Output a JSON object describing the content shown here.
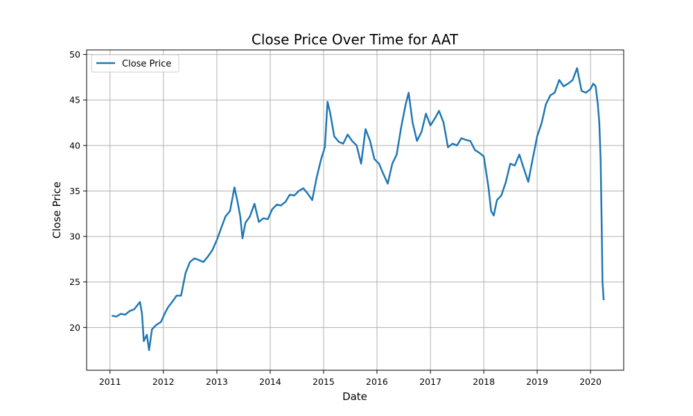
{
  "chart_data": {
    "type": "line",
    "title": "Close Price Over Time for AAT",
    "xlabel": "Date",
    "ylabel": "Close Price",
    "xlim": [
      "2010-07-25",
      "2020-08-15"
    ],
    "ylim": [
      15.3,
      50.5
    ],
    "xticks": [
      "2011",
      "2012",
      "2013",
      "2014",
      "2015",
      "2016",
      "2017",
      "2018",
      "2019",
      "2020"
    ],
    "yticks": [
      20,
      25,
      30,
      35,
      40,
      45,
      50
    ],
    "grid": true,
    "legend_position": "upper-left",
    "series": [
      {
        "name": "Close Price",
        "color": "#1f77b4",
        "x": [
          "2011-01-13",
          "2011-02-15",
          "2011-03-15",
          "2011-04-15",
          "2011-05-15",
          "2011-06-15",
          "2011-07-10",
          "2011-07-25",
          "2011-08-08",
          "2011-08-20",
          "2011-09-10",
          "2011-09-25",
          "2011-10-15",
          "2011-11-15",
          "2011-12-15",
          "2012-01-10",
          "2012-02-01",
          "2012-03-01",
          "2012-04-01",
          "2012-05-01",
          "2012-06-01",
          "2012-07-01",
          "2012-08-01",
          "2012-09-01",
          "2012-10-01",
          "2012-11-01",
          "2012-12-01",
          "2013-01-01",
          "2013-02-01",
          "2013-03-01",
          "2013-04-01",
          "2013-05-01",
          "2013-05-20",
          "2013-06-10",
          "2013-06-25",
          "2013-07-15",
          "2013-08-15",
          "2013-09-15",
          "2013-10-15",
          "2013-11-15",
          "2013-12-15",
          "2014-01-15",
          "2014-02-15",
          "2014-03-15",
          "2014-04-15",
          "2014-05-15",
          "2014-06-15",
          "2014-07-15",
          "2014-08-15",
          "2014-09-15",
          "2014-10-15",
          "2014-11-15",
          "2014-12-15",
          "2015-01-10",
          "2015-01-28",
          "2015-02-15",
          "2015-03-15",
          "2015-04-15",
          "2015-05-15",
          "2015-06-15",
          "2015-07-15",
          "2015-08-15",
          "2015-09-15",
          "2015-10-15",
          "2015-11-15",
          "2015-12-15",
          "2016-01-15",
          "2016-02-10",
          "2016-03-15",
          "2016-04-15",
          "2016-05-15",
          "2016-06-15",
          "2016-07-15",
          "2016-08-05",
          "2016-09-01",
          "2016-10-01",
          "2016-11-01",
          "2016-12-01",
          "2017-01-01",
          "2017-02-01",
          "2017-03-01",
          "2017-04-01",
          "2017-05-01",
          "2017-06-01",
          "2017-07-01",
          "2017-08-01",
          "2017-09-01",
          "2017-10-01",
          "2017-11-01",
          "2017-12-01",
          "2018-01-01",
          "2018-02-01",
          "2018-02-20",
          "2018-03-10",
          "2018-04-01",
          "2018-05-01",
          "2018-06-01",
          "2018-07-01",
          "2018-08-01",
          "2018-09-01",
          "2018-10-01",
          "2018-11-01",
          "2018-12-01",
          "2019-01-01",
          "2019-02-01",
          "2019-03-01",
          "2019-04-01",
          "2019-05-01",
          "2019-06-01",
          "2019-07-01",
          "2019-08-01",
          "2019-09-01",
          "2019-10-01",
          "2019-11-01",
          "2019-12-01",
          "2020-01-01",
          "2020-01-20",
          "2020-02-05",
          "2020-02-20",
          "2020-03-01",
          "2020-03-10",
          "2020-03-18",
          "2020-03-23",
          "2020-03-31"
        ],
        "y": [
          21.3,
          21.2,
          21.5,
          21.4,
          21.8,
          22.0,
          22.5,
          22.8,
          21.5,
          18.5,
          19.2,
          17.5,
          19.8,
          20.3,
          20.6,
          21.5,
          22.2,
          22.8,
          23.5,
          23.5,
          26.0,
          27.2,
          27.6,
          27.4,
          27.2,
          27.8,
          28.5,
          29.6,
          31.0,
          32.2,
          32.8,
          35.4,
          34.0,
          32.2,
          29.8,
          31.5,
          32.2,
          33.6,
          31.6,
          32.0,
          31.9,
          33.0,
          33.5,
          33.4,
          33.8,
          34.6,
          34.5,
          35.0,
          35.3,
          34.7,
          34.0,
          36.5,
          38.5,
          39.8,
          44.8,
          43.6,
          41.0,
          40.4,
          40.2,
          41.2,
          40.5,
          40.0,
          38.0,
          41.8,
          40.5,
          38.5,
          38.0,
          37.0,
          35.8,
          38.0,
          39.0,
          42.0,
          44.5,
          45.8,
          42.5,
          40.5,
          41.5,
          43.5,
          42.2,
          43.0,
          43.8,
          42.5,
          39.8,
          40.2,
          40.0,
          40.8,
          40.6,
          40.5,
          39.5,
          39.2,
          38.8,
          35.5,
          32.8,
          32.3,
          34.0,
          34.5,
          36.0,
          38.0,
          37.8,
          39.0,
          37.5,
          36.0,
          38.5,
          41.0,
          42.5,
          44.5,
          45.5,
          45.8,
          47.2,
          46.5,
          46.8,
          47.2,
          48.5,
          46.0,
          45.8,
          46.2,
          46.8,
          46.5,
          44.5,
          42.5,
          38.5,
          30.5,
          25.0,
          23.0
        ]
      }
    ]
  }
}
